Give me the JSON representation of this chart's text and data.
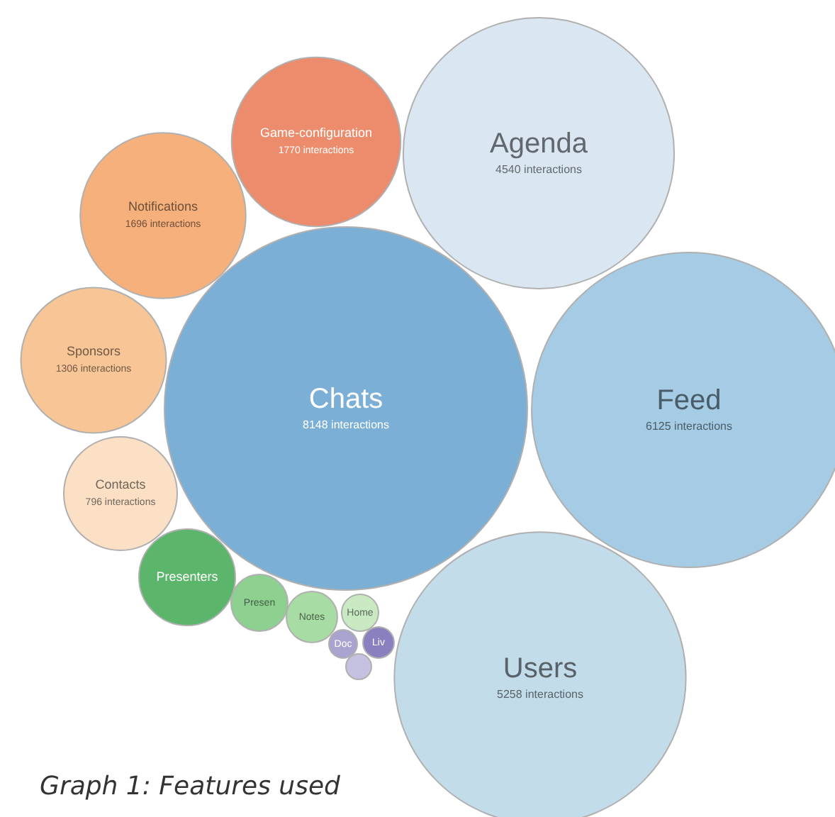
{
  "chart_data": {
    "type": "other",
    "categories": [
      "Chats",
      "Feed",
      "Users",
      "Agenda",
      "Game-configuration",
      "Notifications",
      "Sponsors",
      "Contacts",
      "Presenters",
      "Presen",
      "Notes",
      "Home",
      "Doc",
      "Liv",
      null
    ],
    "values": [
      8148,
      6125,
      5258,
      4540,
      1770,
      1696,
      1306,
      796,
      null,
      null,
      null,
      null,
      null,
      null,
      null
    ],
    "value_labels": [
      "8148 interactions",
      "6125 interactions",
      "5258 interactions",
      "4540 interactions",
      "1770 interactions",
      "1696 interactions",
      "1306 interactions",
      "796 interactions",
      null,
      null,
      null,
      null,
      null,
      null,
      null
    ],
    "colors": [
      "#7bafd6",
      "#a5cce4",
      "#c3dcea",
      "#dae7f3",
      "#ec8c6c",
      "#f5b07c",
      "#f8c597",
      "#fbe0c6",
      "#5bb56a",
      "#8ed08f",
      "#a8dca5",
      "#c9e9c3",
      "#a9a3cf",
      "#8a7fbf",
      "#c5c1e0"
    ],
    "annotations": [
      "Graph 1: Features used"
    ]
  }
}
